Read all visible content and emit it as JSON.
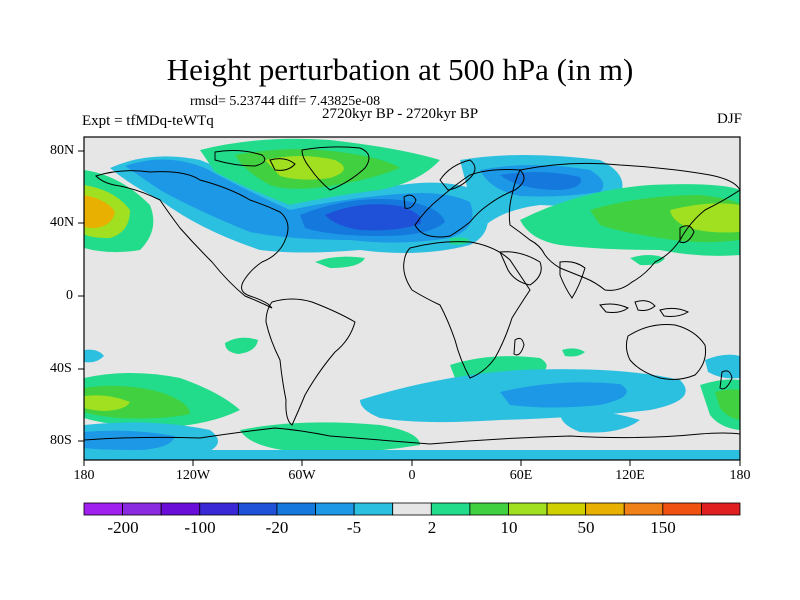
{
  "title": "Height perturbation at 500 hPa (in m)",
  "stats": "rmsd= 5.23744 diff= 7.43825e-08",
  "period": "2720kyr BP - 2720kyr BP",
  "experiment": "Expt = tfMDq-teWTq",
  "season": "DJF",
  "map": {
    "lat_ticks": [
      "80N",
      "40N",
      "0",
      "40S",
      "80S"
    ],
    "lon_ticks": [
      "180",
      "120W",
      "60W",
      "0",
      "60E",
      "120E",
      "180"
    ]
  },
  "colorbar": {
    "labels": [
      "-200",
      "-100",
      "-20",
      "-5",
      "2",
      "10",
      "50",
      "150"
    ],
    "colors": [
      "#a020f0",
      "#8a2be2",
      "#6a0dd8",
      "#3a28d6",
      "#1e50d8",
      "#1478dc",
      "#1c98e6",
      "#2cc0e0",
      "#e6e6e6",
      "#22dc8c",
      "#40d040",
      "#a0e020",
      "#d0d000",
      "#e8b000",
      "#f08018",
      "#f05010",
      "#e02020"
    ]
  }
}
